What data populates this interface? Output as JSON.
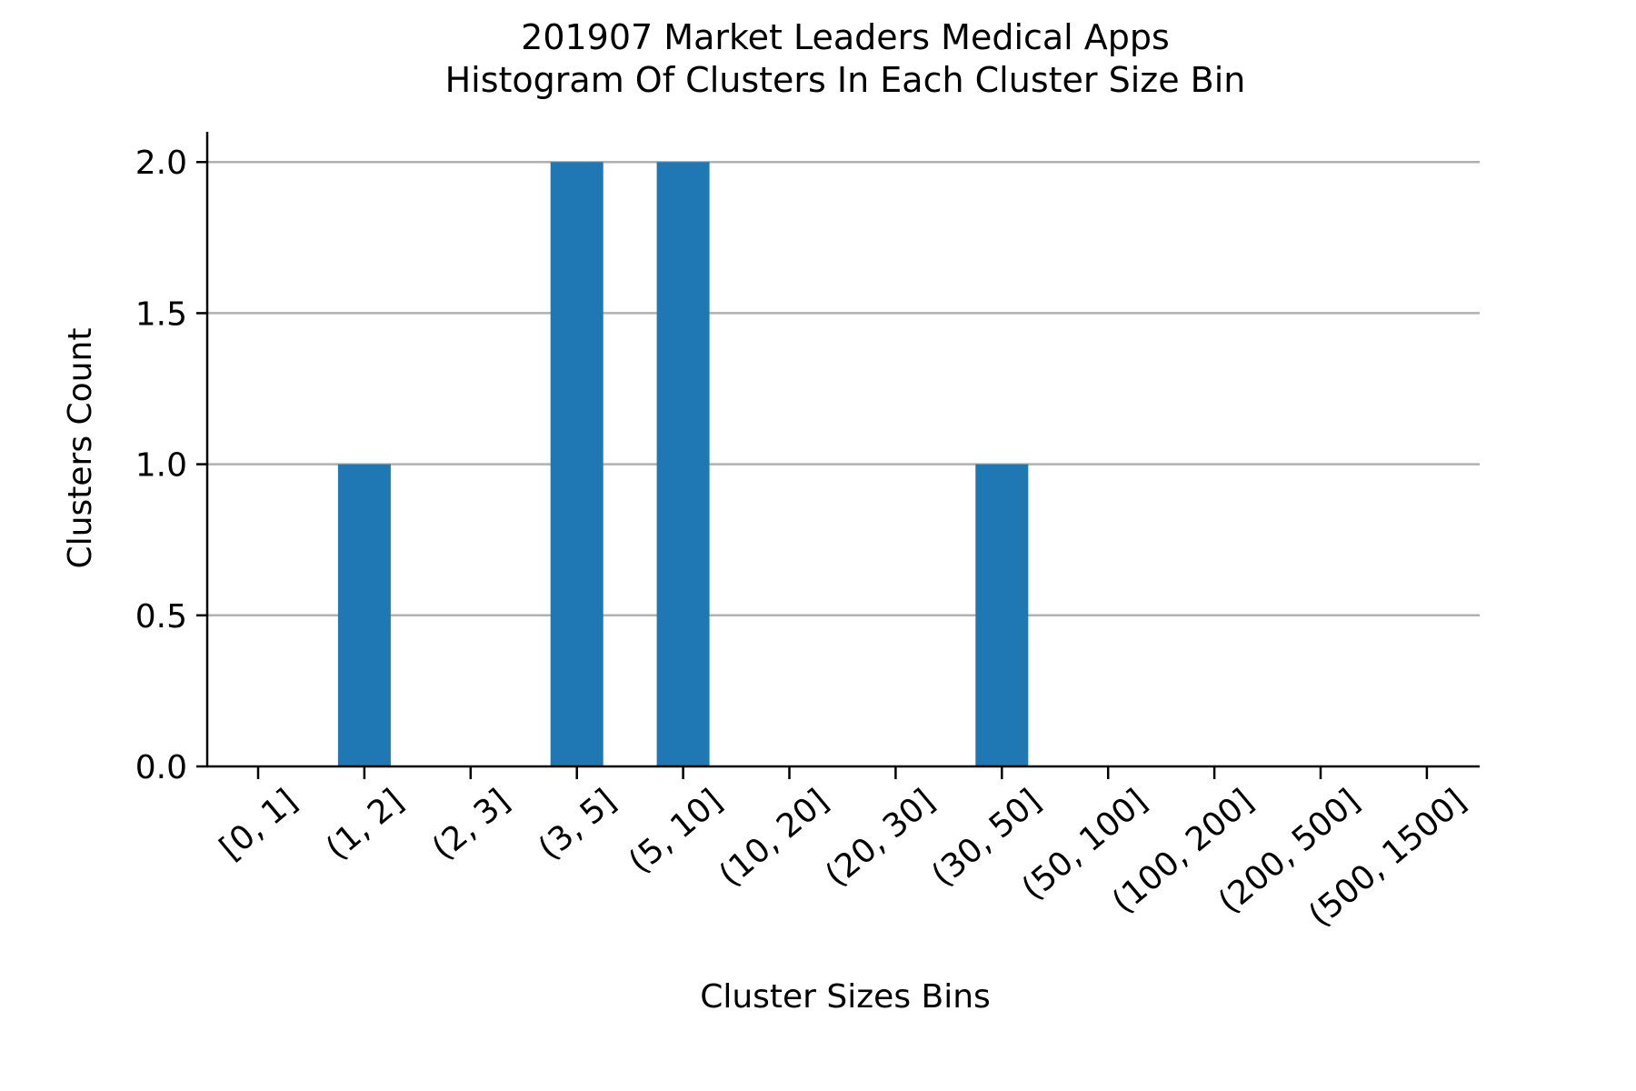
{
  "chart_data": {
    "type": "bar",
    "title_lines": [
      "201907 Market Leaders Medical Apps",
      "Histogram Of Clusters In Each Cluster Size Bin"
    ],
    "xlabel": "Cluster Sizes Bins",
    "ylabel": "Clusters Count",
    "categories": [
      "[0, 1]",
      "(1, 2]",
      "(2, 3]",
      "(3, 5]",
      "(5, 10]",
      "(10, 20]",
      "(20, 30]",
      "(30, 50]",
      "(50, 100]",
      "(100, 200]",
      "(200, 500]",
      "(500, 1500]"
    ],
    "values": [
      0,
      1,
      0,
      2,
      2,
      0,
      0,
      1,
      0,
      0,
      0,
      0
    ],
    "ylim": [
      0,
      2.1
    ],
    "yticks": [
      "0.0",
      "0.5",
      "1.0",
      "1.5",
      "2.0"
    ],
    "ytick_values": [
      0,
      0.5,
      1.0,
      1.5,
      2.0
    ],
    "grid": "horizontal",
    "bar_color": "#1f77b4"
  }
}
